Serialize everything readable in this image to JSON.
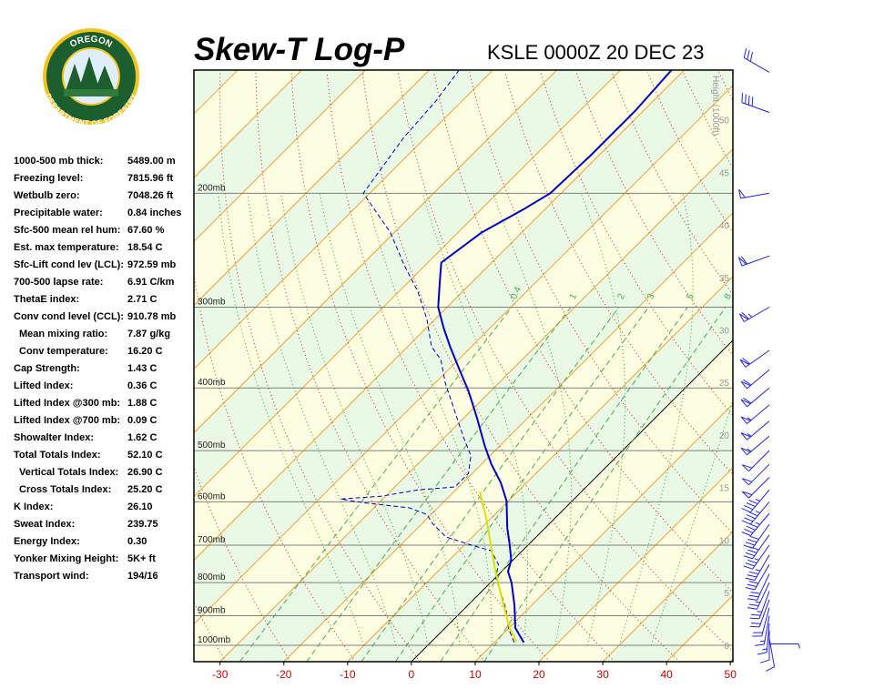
{
  "logo": {
    "top": "OREGON",
    "bottom": "DEPARTMENT OF FORESTRY"
  },
  "indices": [
    {
      "label": "1000-500 mb thick:",
      "value": "5489.00 m"
    },
    {
      "label": "Freezing level:",
      "value": "7815.96 ft"
    },
    {
      "label": "Wetbulb zero:",
      "value": "7048.26 ft"
    },
    {
      "label": "Precipitable water:",
      "value": "0.84 inches"
    },
    {
      "label": "Sfc-500 mean rel hum:",
      "value": "67.60 %"
    },
    {
      "label": "Est. max temperature:",
      "value": "18.54 C"
    },
    {
      "label": "Sfc-Lift cond lev (LCL):",
      "value": "972.59 mb"
    },
    {
      "label": "700-500 lapse rate:",
      "value": "6.91 C/km"
    },
    {
      "label": "ThetaE index:",
      "value": "2.71 C"
    },
    {
      "label": "Conv cond level (CCL):",
      "value": "910.78 mb"
    },
    {
      "label": "Mean mixing ratio:",
      "value": "7.87 g/kg",
      "indent": true
    },
    {
      "label": "Conv temperature:",
      "value": "16.20 C",
      "indent": true
    },
    {
      "label": "Cap Strength:",
      "value": "1.43 C"
    },
    {
      "label": "Lifted Index:",
      "value": "0.36 C"
    },
    {
      "label": "Lifted Index @300 mb:",
      "value": "1.88 C"
    },
    {
      "label": "Lifted Index @700 mb:",
      "value": "0.09 C"
    },
    {
      "label": "Showalter Index:",
      "value": "1.62 C"
    },
    {
      "label": "Total Totals Index:",
      "value": "52.10 C"
    },
    {
      "label": "Vertical Totals Index:",
      "value": "26.90 C",
      "indent": true
    },
    {
      "label": "Cross Totals Index:",
      "value": "25.20 C",
      "indent": true
    },
    {
      "label": "K Index:",
      "value": "26.10"
    },
    {
      "label": "Sweat Index:",
      "value": "239.75"
    },
    {
      "label": "Energy Index:",
      "value": "0.30"
    },
    {
      "label": "Yonker Mixing Height:",
      "value": "5K+ ft"
    },
    {
      "label": "Transport wind:",
      "value": "194/16"
    }
  ],
  "chart_data": {
    "type": "skewt",
    "title": "Skew-T Log-P",
    "subtitle": "KSLE 0000Z 20 DEC 23",
    "xlim": [
      -34.1,
      50.4
    ],
    "xticks": [
      -30,
      -20,
      -10,
      0,
      10,
      20,
      30,
      40,
      50
    ],
    "ylim": [
      1060,
      129
    ],
    "ylog": true,
    "yticks": [
      {
        "value": 200,
        "label": "200mb"
      },
      {
        "value": 300,
        "label": "300mb"
      },
      {
        "value": 400,
        "label": "400mb"
      },
      {
        "value": 500,
        "label": "500mb"
      },
      {
        "value": 600,
        "label": "600mb"
      },
      {
        "value": 700,
        "label": "700mb"
      },
      {
        "value": 800,
        "label": "800mb"
      },
      {
        "value": 900,
        "label": "900mb"
      },
      {
        "value": 1000,
        "label": "1000mb"
      }
    ],
    "y2label": "Height (1000ft)",
    "y2lim": [
      -1.56,
      54.72
    ],
    "y2ticks": [
      0,
      5,
      10,
      15,
      20,
      25,
      30,
      35,
      40,
      45,
      50
    ],
    "mixing_ratio_lines": [
      0.4,
      1,
      2,
      3,
      5,
      8
    ],
    "series": [
      {
        "color": "#0000cc",
        "dashed": false,
        "pressure": [
          990,
          940,
          867,
          800,
          769,
          738,
          698,
          659,
          598,
          560,
          525,
          492,
          447,
          405,
          374,
          345,
          323,
          300,
          275,
          256,
          230,
          212,
          200,
          175,
          149,
          129
        ],
        "values": [
          14.6,
          11.0,
          7.3,
          3.3,
          1.0,
          -0.3,
          -3.0,
          -5.9,
          -10.3,
          -14.1,
          -18.4,
          -22.3,
          -27.7,
          -33.4,
          -38.4,
          -43.4,
          -47.3,
          -51.4,
          -55.0,
          -57.9,
          -56.3,
          -53.4,
          -51.7,
          -51.3,
          -51.3,
          -52.0
        ]
      },
      {
        "color": "#0000cc",
        "dashed": true,
        "pressure": [
          990,
          940,
          881,
          826,
          787,
          750,
          714,
          698,
          680,
          648,
          628,
          613,
          602,
          594,
          588,
          575,
          569,
          542,
          509,
          477,
          433,
          393,
          362,
          345,
          313,
          284,
          258,
          230,
          200,
          184,
          164,
          144,
          129
        ],
        "values": [
          13.1,
          9.9,
          6.7,
          3.0,
          0.1,
          -1.6,
          -4.9,
          -9.4,
          -14.1,
          -18.4,
          -20.6,
          -24.4,
          -32.4,
          -36.6,
          -30.6,
          -25.9,
          -20.6,
          -20.6,
          -23.0,
          -27.0,
          -32.7,
          -38.4,
          -42.7,
          -46.3,
          -51.3,
          -57.0,
          -63.4,
          -70.6,
          -81.0,
          -82.0,
          -83.4,
          -84.1,
          -85.3
        ]
      },
      {
        "color": "#e0e000",
        "dashed": false,
        "pressure": [
          987,
          940,
          853,
          774,
          703,
          638,
          579
        ],
        "values": [
          13.3,
          10.1,
          4.7,
          -0.6,
          -5.6,
          -10.6,
          -15.9
        ]
      }
    ],
    "winds": {
      "pressure": [
        995,
        975,
        950,
        925,
        900,
        875,
        850,
        825,
        800,
        775,
        750,
        725,
        700,
        675,
        650,
        625,
        600,
        575,
        550,
        525,
        500,
        475,
        450,
        425,
        400,
        375,
        350,
        300,
        250,
        200,
        150,
        130
      ],
      "direction": [
        90,
        170,
        180,
        185,
        190,
        195,
        200,
        200,
        205,
        205,
        210,
        210,
        215,
        215,
        215,
        220,
        220,
        220,
        225,
        225,
        225,
        230,
        230,
        230,
        230,
        230,
        235,
        240,
        250,
        260,
        290,
        300
      ],
      "speed": [
        5,
        10,
        10,
        15,
        15,
        20,
        20,
        25,
        25,
        30,
        30,
        35,
        35,
        40,
        40,
        45,
        45,
        45,
        50,
        50,
        50,
        55,
        55,
        55,
        60,
        60,
        60,
        65,
        60,
        50,
        40,
        30
      ]
    }
  }
}
